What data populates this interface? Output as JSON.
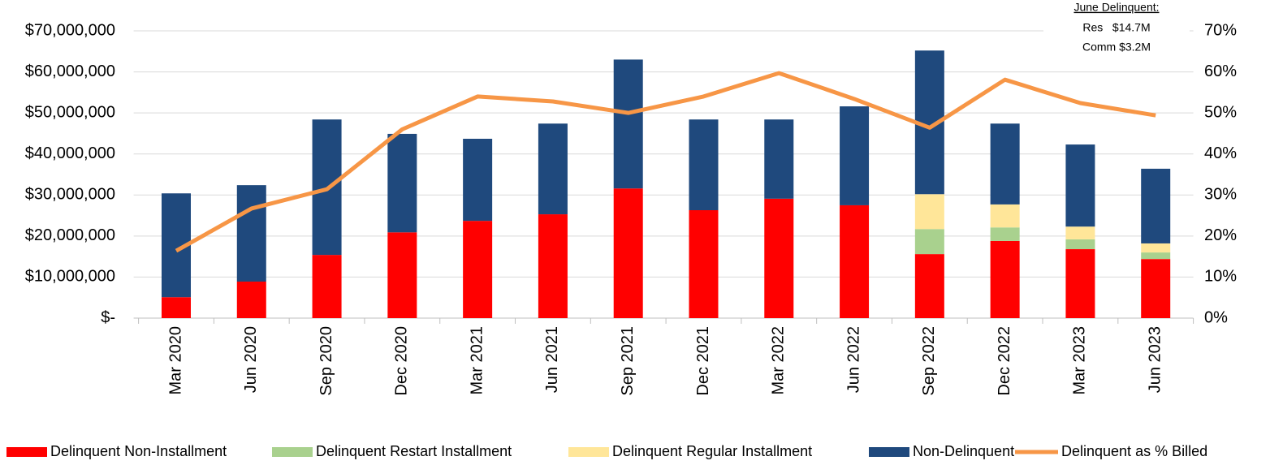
{
  "chart_data": {
    "type": "bar",
    "stacked": true,
    "categories": [
      "Mar 2020",
      "Jun 2020",
      "Sep 2020",
      "Dec 2020",
      "Mar 2021",
      "Jun 2021",
      "Sep 2021",
      "Dec 2021",
      "Mar 2022",
      "Jun 2022",
      "Sep 2022",
      "Dec 2022",
      "Mar 2023",
      "Jun 2023"
    ],
    "series": [
      {
        "name": "Delinquent Non-Installment",
        "color": "#ff0000",
        "values": [
          5100000,
          8900000,
          15400000,
          20900000,
          23700000,
          25300000,
          31600000,
          26300000,
          29100000,
          27500000,
          15600000,
          18800000,
          16800000,
          14400000
        ]
      },
      {
        "name": "Delinquent Restart Installment",
        "color": "#a9d18e",
        "values": [
          null,
          null,
          null,
          null,
          null,
          null,
          null,
          null,
          null,
          null,
          6100000,
          3300000,
          2400000,
          1600000
        ]
      },
      {
        "name": "Delinquent Regular Installment",
        "color": "#ffe699",
        "values": [
          null,
          null,
          null,
          null,
          null,
          null,
          null,
          null,
          null,
          null,
          8500000,
          5600000,
          3100000,
          2200000
        ]
      },
      {
        "name": "Non-Delinquent",
        "color": "#1f497d",
        "values": [
          25300000,
          23500000,
          33000000,
          24000000,
          20000000,
          22100000,
          31400000,
          22100000,
          19300000,
          24100000,
          35000000,
          19700000,
          20000000,
          18200000
        ]
      },
      {
        "name": "Delinquent as % Billed",
        "color": "#f79646",
        "type": "line",
        "axis": "y2",
        "values": [
          16.4,
          26.7,
          31.4,
          46.0,
          54.0,
          52.8,
          50.0,
          54.0,
          59.7,
          53.4,
          46.4,
          58.1,
          52.4,
          49.4
        ]
      }
    ],
    "ylim": [
      0,
      70000000
    ],
    "yticks": [
      {
        "value": 0,
        "label": "$-"
      },
      {
        "value": 10000000,
        "label": "$10,000,000"
      },
      {
        "value": 20000000,
        "label": "$20,000,000"
      },
      {
        "value": 30000000,
        "label": "$30,000,000"
      },
      {
        "value": 40000000,
        "label": "$40,000,000"
      },
      {
        "value": 50000000,
        "label": "$50,000,000"
      },
      {
        "value": 60000000,
        "label": "$60,000,000"
      },
      {
        "value": 70000000,
        "label": "$70,000,000"
      }
    ],
    "y2lim": [
      0,
      70
    ],
    "y2ticks": [
      {
        "value": 0,
        "label": "0%"
      },
      {
        "value": 10,
        "label": "10%"
      },
      {
        "value": 20,
        "label": "20%"
      },
      {
        "value": 30,
        "label": "30%"
      },
      {
        "value": 40,
        "label": "40%"
      },
      {
        "value": 50,
        "label": "50%"
      },
      {
        "value": 60,
        "label": "60%"
      },
      {
        "value": 70,
        "label": "70%"
      }
    ],
    "grid": true,
    "legend": "bottom",
    "annotations": [
      "June Delinquent:",
      "Res   $14.7M",
      "Comm $3.2M"
    ]
  }
}
